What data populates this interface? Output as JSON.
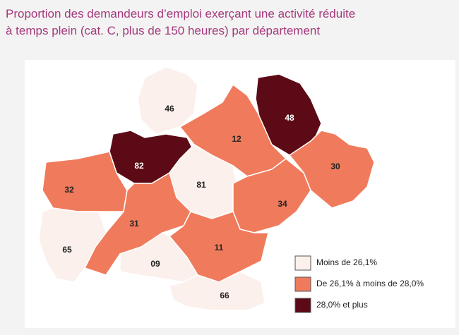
{
  "title": [
    "Proportion des demandeurs d’emploi exerçant une activité réduite",
    "à temps plein (cat. C, plus de 150 heures) par département"
  ],
  "legend": [
    {
      "label": "Moins de 26,1%",
      "color": "#fbf0eb"
    },
    {
      "label": "De 26,1% à moins de 28,0%",
      "color": "#f07b5c"
    },
    {
      "label": "28,0% et plus",
      "color": "#5c0a16"
    }
  ],
  "departments": [
    {
      "code": "46",
      "class": 0
    },
    {
      "code": "48",
      "class": 2
    },
    {
      "code": "12",
      "class": 1
    },
    {
      "code": "82",
      "class": 2
    },
    {
      "code": "30",
      "class": 1
    },
    {
      "code": "81",
      "class": 0
    },
    {
      "code": "32",
      "class": 1
    },
    {
      "code": "34",
      "class": 1
    },
    {
      "code": "31",
      "class": 1
    },
    {
      "code": "65",
      "class": 0
    },
    {
      "code": "11",
      "class": 1
    },
    {
      "code": "09",
      "class": 0
    },
    {
      "code": "66",
      "class": 0
    }
  ]
}
